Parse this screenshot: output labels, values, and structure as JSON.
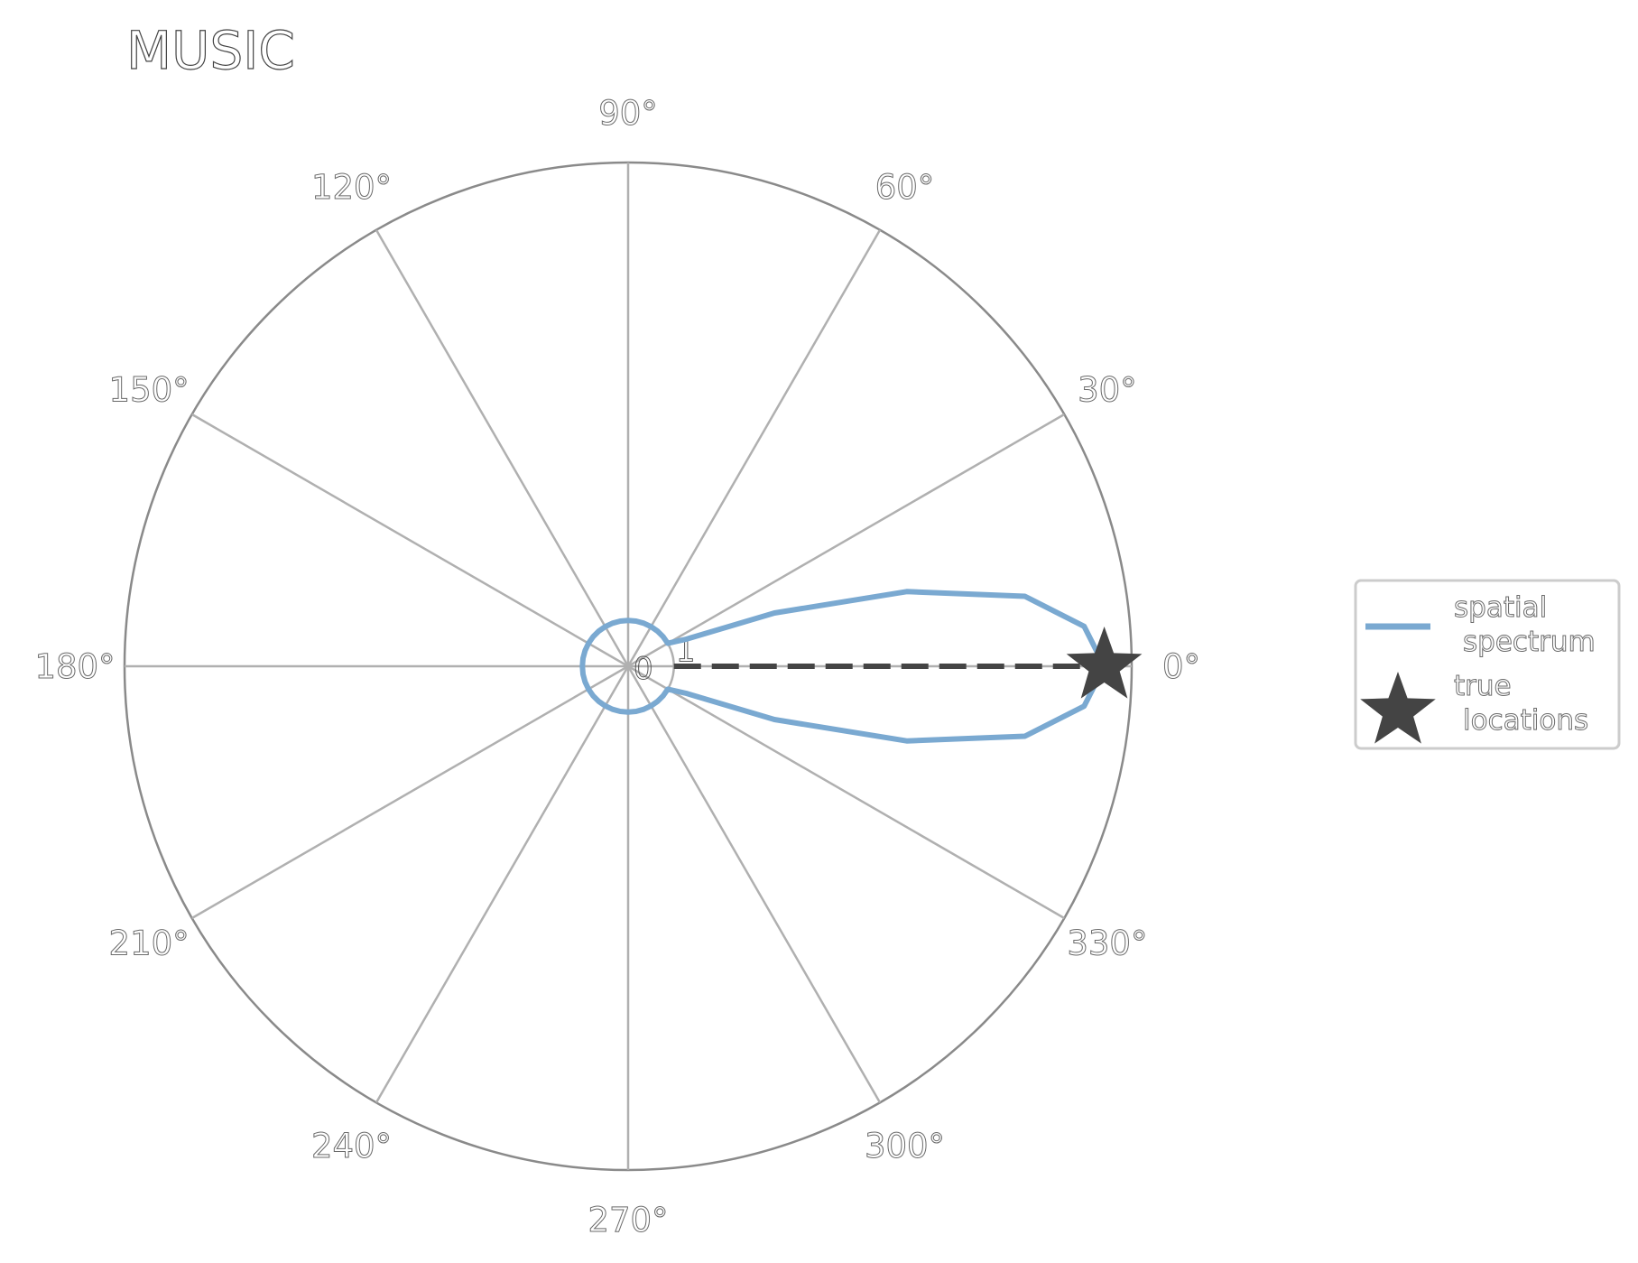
{
  "chart_data": {
    "type": "polar-line",
    "title": "MUSIC",
    "theta_ticks": [
      "0°",
      "30°",
      "60°",
      "90°",
      "120°",
      "150°",
      "180°",
      "210°",
      "240°",
      "270°",
      "300°",
      "330°"
    ],
    "r_ticks": [
      "0",
      "1"
    ],
    "rlim": [
      0,
      11
    ],
    "grid": true,
    "legend_position": "right",
    "colors": {
      "spectrum": "#7aa9d1",
      "true_locations": "#444444",
      "grid": "#b0b0b0"
    },
    "series": [
      {
        "name": "spatial spectrum",
        "kind": "line",
        "theta_deg": [
          0,
          5,
          10,
          15,
          20,
          25,
          30,
          40,
          50,
          60,
          70,
          80,
          90,
          100,
          110,
          120,
          130,
          140,
          150,
          160,
          170,
          180,
          190,
          200,
          210,
          220,
          230,
          240,
          250,
          260,
          270,
          280,
          290,
          300,
          310,
          320,
          330,
          335,
          340,
          345,
          350,
          355,
          360
        ],
        "r": [
          10.4,
          10.0,
          8.8,
          6.3,
          3.4,
          1.4,
          1.0,
          1.0,
          1.0,
          1.0,
          1.0,
          1.0,
          1.0,
          1.0,
          1.0,
          1.0,
          1.0,
          1.0,
          1.0,
          1.0,
          1.0,
          1.0,
          1.0,
          1.0,
          1.0,
          1.0,
          1.0,
          1.0,
          1.0,
          1.0,
          1.0,
          1.0,
          1.0,
          1.0,
          1.0,
          1.0,
          1.0,
          1.4,
          3.4,
          6.3,
          8.8,
          10.0,
          10.4
        ]
      },
      {
        "name": "true locations",
        "kind": "marker-star",
        "theta_deg": [
          0
        ],
        "r": [
          10.4
        ]
      },
      {
        "name": "",
        "kind": "dashed-line",
        "theta_deg": [
          0,
          0
        ],
        "r": [
          1,
          10.4
        ]
      }
    ],
    "legend": {
      "entries": [
        {
          "label_lines": [
            "spatial",
            "spectrum"
          ]
        },
        {
          "label_lines": [
            "true",
            "locations"
          ]
        }
      ]
    }
  }
}
